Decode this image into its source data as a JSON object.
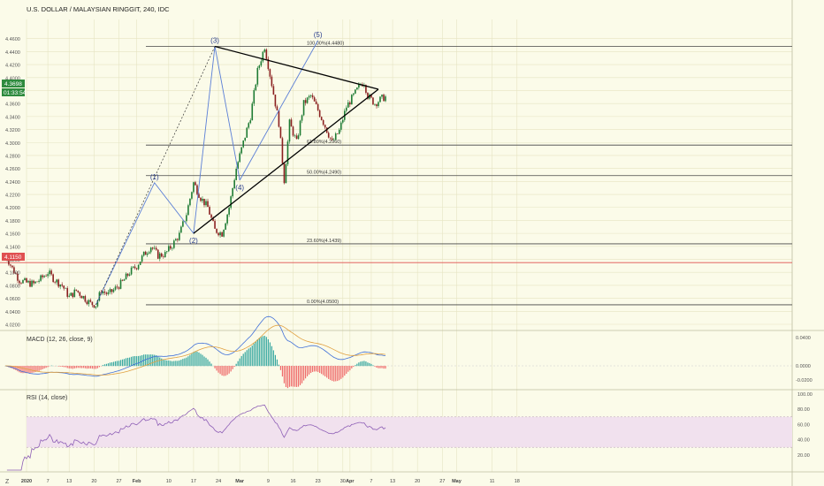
{
  "header": {
    "symbol_title": "U.S. DOLLAR / MALAYSIAN RINGGIT, 240, IDC",
    "logo_text": "Z"
  },
  "colors": {
    "background": "#fbfbe9",
    "grid": "#e6e4c2",
    "candle_up": "#1e7b33",
    "candle_down": "#8a1f1f",
    "wave_line": "#5b7fd6",
    "trend_line": "#000000",
    "fib_line": "#444444",
    "hline": "#e05050",
    "macd_line": "#3f6fd8",
    "signal_line": "#e0a040",
    "hist_pos": "#35a7a0",
    "hist_neg": "#ef6a6a",
    "rsi_line": "#8e5fb6",
    "rsi_band": "#f1e1ee",
    "price_badge": "#2e8b3e",
    "hline_badge": "#e05050"
  },
  "price_badges": {
    "last_price": "4.3698",
    "countdown": "01:33:54",
    "hline_price": "4.1150"
  },
  "panes": {
    "macd_title": "MACD (12, 26, close, 9)",
    "rsi_title": "RSI (14, close)"
  },
  "annotations": {
    "fib_levels": [
      {
        "label": "100.00%(4.4480)",
        "price": 4.448
      },
      {
        "label": "61.80%(4.2960)",
        "price": 4.296
      },
      {
        "label": "50.00%(4.2490)",
        "price": 4.249
      },
      {
        "label": "23.60%(4.1439)",
        "price": 4.1439
      },
      {
        "label": "0.00%(4.0500)",
        "price": 4.05
      }
    ],
    "hline_price": 4.115,
    "waves": [
      {
        "label": "(1)",
        "day": 36,
        "price": 4.238
      },
      {
        "label": "(2)",
        "day": 47,
        "price": 4.16
      },
      {
        "label": "(3)",
        "day": 53,
        "price": 4.448
      },
      {
        "label": "(4)",
        "day": 60,
        "price": 4.242
      },
      {
        "label": "(5)",
        "day": 82,
        "price": 4.457
      }
    ]
  },
  "chart_data": {
    "type": "candlestick",
    "title": "U.S. DOLLAR / MALAYSIAN RINGGIT, 240, IDC",
    "x_axis": {
      "tick_labels": [
        {
          "label": "2020",
          "day": 0
        },
        {
          "label": "7",
          "day": 6
        },
        {
          "label": "13",
          "day": 12
        },
        {
          "label": "20",
          "day": 19
        },
        {
          "label": "27",
          "day": 26
        },
        {
          "label": "Feb",
          "day": 31
        },
        {
          "label": "10",
          "day": 40
        },
        {
          "label": "17",
          "day": 47
        },
        {
          "label": "24",
          "day": 54
        },
        {
          "label": "Mar",
          "day": 60
        },
        {
          "label": "9",
          "day": 68
        },
        {
          "label": "16",
          "day": 75
        },
        {
          "label": "23",
          "day": 82
        },
        {
          "label": "30",
          "day": 89
        },
        {
          "label": "Apr",
          "day": 91
        },
        {
          "label": "7",
          "day": 97
        },
        {
          "label": "13",
          "day": 103
        },
        {
          "label": "20",
          "day": 110
        },
        {
          "label": "27",
          "day": 117
        },
        {
          "label": "May",
          "day": 121
        },
        {
          "label": "11",
          "day": 131
        },
        {
          "label": "18",
          "day": 138
        }
      ]
    },
    "y_axis": {
      "range": [
        4.02,
        4.48
      ],
      "tick_labels": [
        "4.4600",
        "4.4400",
        "4.4200",
        "4.4000",
        "4.3800",
        "4.3600",
        "4.3400",
        "4.3200",
        "4.3000",
        "4.2800",
        "4.2600",
        "4.2400",
        "4.2200",
        "4.2000",
        "4.1800",
        "4.1600",
        "4.1400",
        "4.1200",
        "4.1000",
        "4.0800",
        "4.0600",
        "4.0400",
        "4.0200"
      ],
      "scale": "linear",
      "position": "right"
    },
    "grid": true,
    "price_path": [
      [
        -6,
        4.128
      ],
      [
        -4,
        4.106
      ],
      [
        -2,
        4.088
      ],
      [
        0,
        4.084
      ],
      [
        2,
        4.082
      ],
      [
        4,
        4.09
      ],
      [
        6,
        4.1
      ],
      [
        8,
        4.088
      ],
      [
        10,
        4.08
      ],
      [
        12,
        4.062
      ],
      [
        14,
        4.072
      ],
      [
        16,
        4.062
      ],
      [
        18,
        4.052
      ],
      [
        19.5,
        4.05
      ],
      [
        21,
        4.072
      ],
      [
        23,
        4.066
      ],
      [
        25,
        4.075
      ],
      [
        27,
        4.085
      ],
      [
        29,
        4.1
      ],
      [
        31,
        4.11
      ],
      [
        33,
        4.127
      ],
      [
        35,
        4.14
      ],
      [
        37,
        4.126
      ],
      [
        39,
        4.128
      ],
      [
        41,
        4.142
      ],
      [
        43,
        4.158
      ],
      [
        45,
        4.19
      ],
      [
        47,
        4.238
      ],
      [
        49,
        4.215
      ],
      [
        51,
        4.2
      ],
      [
        53,
        4.165
      ],
      [
        55,
        4.16
      ],
      [
        57,
        4.2
      ],
      [
        59,
        4.26
      ],
      [
        61,
        4.3
      ],
      [
        63,
        4.34
      ],
      [
        65,
        4.41
      ],
      [
        67,
        4.448
      ],
      [
        69,
        4.39
      ],
      [
        71,
        4.33
      ],
      [
        72.5,
        4.242
      ],
      [
        74,
        4.33
      ],
      [
        76,
        4.3
      ],
      [
        78,
        4.36
      ],
      [
        80,
        4.372
      ],
      [
        82,
        4.35
      ],
      [
        84,
        4.325
      ],
      [
        86,
        4.3
      ],
      [
        88,
        4.318
      ],
      [
        90,
        4.355
      ],
      [
        92,
        4.372
      ],
      [
        94,
        4.39
      ],
      [
        95,
        4.393
      ],
      [
        96,
        4.372
      ],
      [
        98,
        4.36
      ],
      [
        100,
        4.368
      ],
      [
        101,
        4.37
      ]
    ],
    "indicators": {
      "macd": {
        "params": [
          12,
          26,
          9
        ],
        "y_tick_labels": [
          "0.0400",
          "0.0000",
          "-0.0200"
        ],
        "range": [
          -0.03,
          0.045
        ]
      },
      "rsi": {
        "period": 14,
        "y_tick_labels": [
          "100.00",
          "80.00",
          "60.00",
          "40.00",
          "20.00"
        ],
        "range": [
          0,
          100
        ],
        "band": [
          30,
          70
        ]
      }
    }
  }
}
